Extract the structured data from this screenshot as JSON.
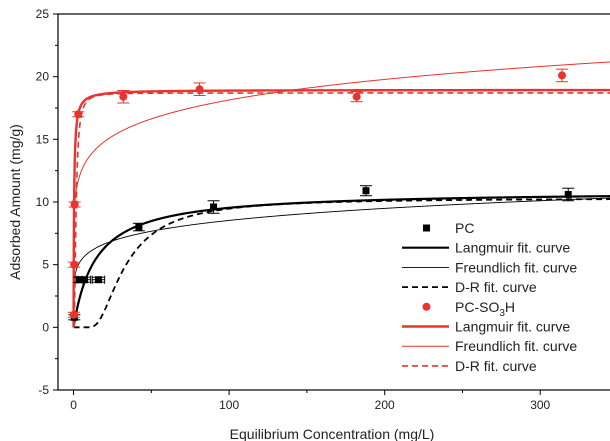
{
  "chart_data": {
    "type": "scatter",
    "title": "",
    "xlabel": "Equilibrium Concentration (mg/L)",
    "ylabel": "Adsorbed Amount (mg/g)",
    "xlim": [
      -10,
      350
    ],
    "ylim": [
      -5,
      25
    ],
    "x_ticks": [
      0,
      100,
      200,
      300
    ],
    "y_ticks": [
      -5,
      0,
      5,
      10,
      15,
      20,
      25
    ],
    "grid": false,
    "legend_position": "bottom-right",
    "series": [
      {
        "name": "PC",
        "kind": "points",
        "marker": "square",
        "color": "#000000",
        "x": [
          0.5,
          3.5,
          7,
          16,
          42,
          90,
          188,
          318
        ],
        "y": [
          0.8,
          3.8,
          3.8,
          3.8,
          8.0,
          9.6,
          10.9,
          10.6
        ],
        "yerr": [
          0.2,
          0.2,
          0.2,
          0.2,
          0.3,
          0.5,
          0.4,
          0.5
        ],
        "xerr": [
          0,
          2,
          4,
          4,
          0,
          0,
          0,
          0
        ]
      },
      {
        "name": "Langmuir fit. curve",
        "kind": "curve",
        "model": "langmuir",
        "params": {
          "qm": 10.9,
          "K": 0.07
        },
        "color": "#000000",
        "width": 2.2,
        "dash": ""
      },
      {
        "name": "Freundlich fit. curve",
        "kind": "curve",
        "model": "freundlich",
        "params": {
          "Kf": 4.2,
          "n": 6.5
        },
        "color": "#000000",
        "width": 0.9,
        "dash": ""
      },
      {
        "name": "D-R fit. curve",
        "kind": "curve",
        "model": "dr",
        "params": {
          "qm": 10.3,
          "B": 850
        },
        "color": "#000000",
        "width": 1.8,
        "dash": "6,4"
      },
      {
        "name": "PC-SO3H",
        "kind": "points",
        "marker": "circle",
        "color": "#e8332e",
        "x": [
          0.2,
          0.4,
          0.7,
          3.0,
          32,
          81,
          182,
          314
        ],
        "y": [
          1.0,
          5.0,
          9.8,
          17.0,
          18.4,
          19.0,
          18.4,
          20.1
        ],
        "yerr": [
          0.2,
          0.2,
          0.2,
          0.2,
          0.5,
          0.5,
          0.4,
          0.5
        ],
        "xerr": [
          0,
          0,
          1.5,
          0,
          0,
          0,
          0,
          0
        ]
      },
      {
        "name": "Langmuir fit. curve",
        "kind": "curve",
        "model": "langmuir",
        "params": {
          "qm": 18.95,
          "K": 3.0
        },
        "color": "#e8332e",
        "width": 2.4,
        "dash": ""
      },
      {
        "name": "Freundlich fit. curve",
        "kind": "curve",
        "model": "freundlich",
        "params": {
          "Kf": 10.2,
          "n": 8.0
        },
        "color": "#e8332e",
        "width": 1.0,
        "dash": ""
      },
      {
        "name": "D-R fit. curve",
        "kind": "curve",
        "model": "dr",
        "params": {
          "qm": 18.7,
          "B": 3
        },
        "color": "#e8332e",
        "width": 1.6,
        "dash": "6,4"
      }
    ],
    "legend": [
      {
        "label": "PC",
        "sub": ""
      },
      {
        "label": "Langmuir fit. curve",
        "sub": ""
      },
      {
        "label": "Freundlich fit. curve",
        "sub": ""
      },
      {
        "label": "D-R fit. curve",
        "sub": ""
      },
      {
        "label": "PC-SO",
        "sub": "3",
        "after": "H"
      },
      {
        "label": "Langmuir fit. curve",
        "sub": ""
      },
      {
        "label": "Freundlich fit. curve",
        "sub": ""
      },
      {
        "label": "D-R fit. curve",
        "sub": ""
      }
    ]
  }
}
